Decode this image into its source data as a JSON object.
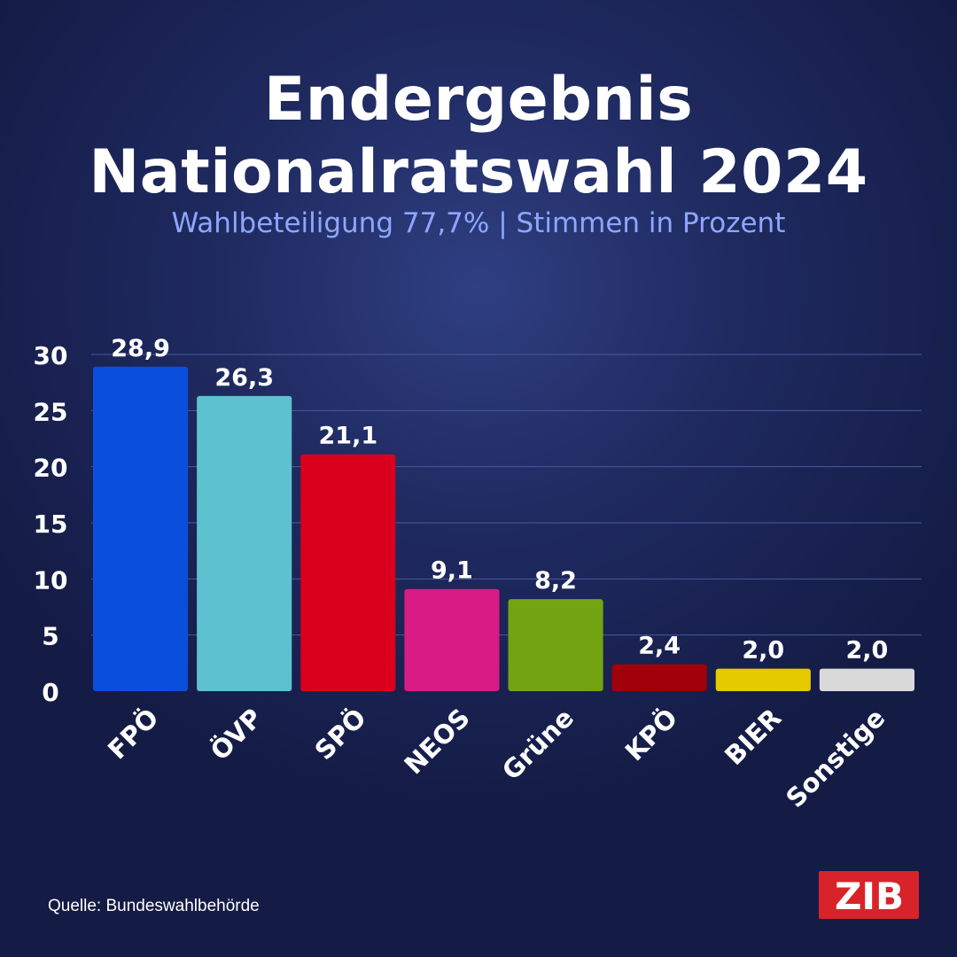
{
  "title": {
    "line1": "Endergebnis",
    "line2": "Nationalratswahl 2024"
  },
  "subtitle": "Wahlbeteiligung 77,7% | Stimmen in Prozent",
  "source": "Quelle: Bundeswahlbehörde",
  "logo_text": "ZIB",
  "colors": {
    "logo_bg": "#d8232a",
    "subtitle": "#8ea6ff",
    "background": "#1f2a60"
  },
  "chart_data": {
    "type": "bar",
    "categories": [
      "FPÖ",
      "ÖVP",
      "SPÖ",
      "NEOS",
      "Grüne",
      "KPÖ",
      "BIER",
      "Sonstige"
    ],
    "values": [
      28.9,
      26.3,
      21.1,
      9.1,
      8.2,
      2.4,
      2.0,
      2.0
    ],
    "value_labels": [
      "28,9",
      "26,3",
      "21,1",
      "9,1",
      "8,2",
      "2,4",
      "2,0",
      "2,0"
    ],
    "bar_colors": [
      "#0a4fdc",
      "#5ec1cf",
      "#d8001c",
      "#d81b85",
      "#74a312",
      "#a00009",
      "#e6ca00",
      "#d9d9d9"
    ],
    "yticks": [
      0,
      5,
      10,
      15,
      20,
      25,
      30
    ],
    "ylim": [
      0,
      30
    ],
    "grid": true
  }
}
